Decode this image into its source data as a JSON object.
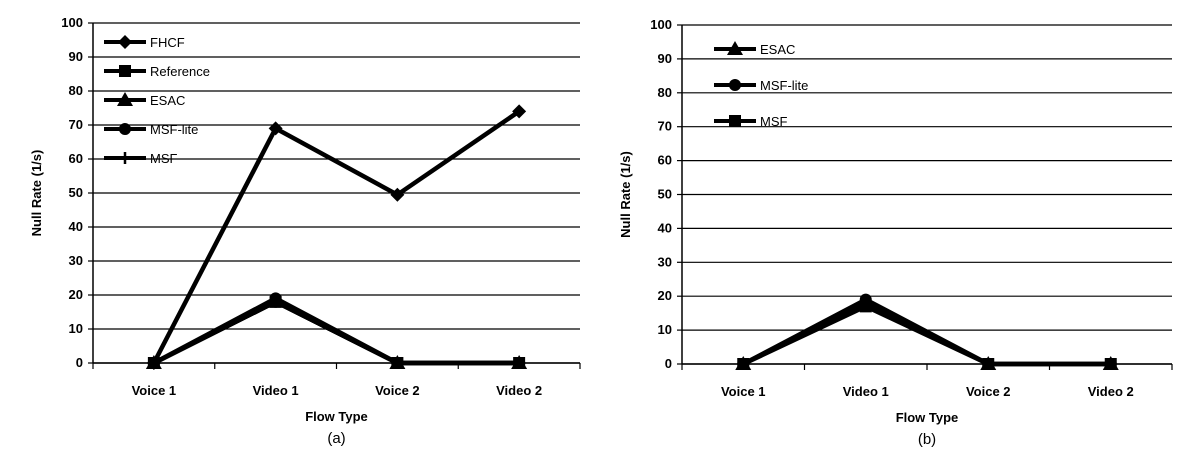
{
  "chart_data": [
    {
      "type": "line",
      "caption": "(a)",
      "xlabel": "Flow Type",
      "ylabel": "Null Rate (1/s)",
      "ylim": [
        0,
        100
      ],
      "yticks": [
        "0",
        "10",
        "20",
        "30",
        "40",
        "50",
        "60",
        "70",
        "80",
        "90",
        "100"
      ],
      "categories": [
        "Voice 1",
        "Video 1",
        "Voice 2",
        "Video 2"
      ],
      "grid": true,
      "legend_position": "top-left",
      "series": [
        {
          "name": "FHCF",
          "values": [
            0,
            69,
            49.5,
            74
          ],
          "marker": "diamond",
          "color": "#000000"
        },
        {
          "name": "Reference",
          "values": [
            0,
            18,
            0,
            0
          ],
          "marker": "square",
          "color": "#000000"
        },
        {
          "name": "ESAC",
          "values": [
            0,
            18,
            0,
            0
          ],
          "marker": "triangle",
          "color": "#000000"
        },
        {
          "name": "MSF-lite",
          "values": [
            0,
            19,
            0,
            0
          ],
          "marker": "circle",
          "color": "#000000"
        },
        {
          "name": "MSF",
          "values": [
            0,
            18,
            0,
            0
          ],
          "marker": "plus",
          "color": "#000000"
        }
      ]
    },
    {
      "type": "line",
      "caption": "(b)",
      "xlabel": "Flow Type",
      "ylabel": "Null Rate (1/s)",
      "ylim": [
        0,
        100
      ],
      "yticks": [
        "0",
        "10",
        "20",
        "30",
        "40",
        "50",
        "60",
        "70",
        "80",
        "90",
        "100"
      ],
      "categories": [
        "Voice 1",
        "Video 1",
        "Voice 2",
        "Video 2"
      ],
      "grid": true,
      "legend_position": "top-left",
      "series": [
        {
          "name": "ESAC",
          "values": [
            0,
            18,
            0,
            0
          ],
          "marker": "triangle",
          "color": "#000000"
        },
        {
          "name": "MSF-lite",
          "values": [
            0,
            19,
            0,
            0
          ],
          "marker": "circle",
          "color": "#000000"
        },
        {
          "name": "MSF",
          "values": [
            0,
            17,
            0,
            0
          ],
          "marker": "square",
          "color": "#000000"
        }
      ]
    }
  ]
}
